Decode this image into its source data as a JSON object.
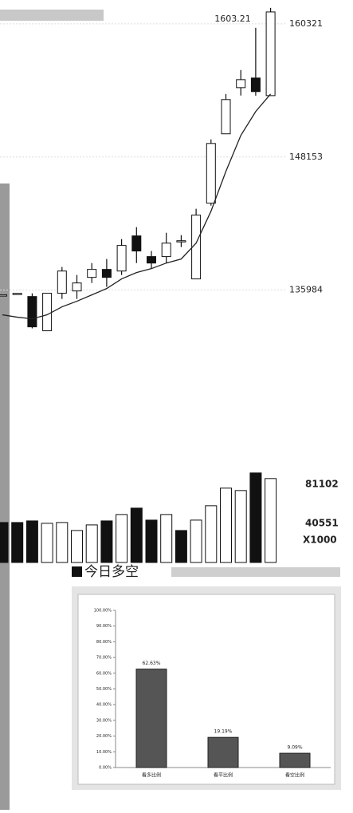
{
  "chart_data": [
    {
      "type": "candlestick",
      "annotation": "1603.21",
      "open": [
        135550,
        135690,
        135400,
        132270,
        135700,
        135910,
        137150,
        137880,
        137730,
        140940,
        139050,
        139050,
        140500,
        137010,
        143930,
        150270,
        154490,
        155370,
        153760
      ],
      "high": [
        135550,
        135690,
        135690,
        135690,
        138100,
        137370,
        138460,
        138830,
        140650,
        141740,
        139560,
        141230,
        141010,
        143420,
        149760,
        153910,
        156100,
        159960,
        161780
      ],
      "low": [
        135550,
        135690,
        132490,
        132270,
        135180,
        135180,
        136640,
        136280,
        137370,
        138460,
        137950,
        138460,
        139920,
        137010,
        143710,
        150270,
        153770,
        153760,
        153760
      ],
      "close": [
        135550,
        135690,
        132630,
        135700,
        137730,
        136640,
        137880,
        137150,
        140070,
        139560,
        138460,
        140280,
        140500,
        142840,
        149390,
        153400,
        155220,
        154130,
        161410
      ],
      "ma": [
        133730,
        133510,
        133360,
        133730,
        134460,
        134970,
        135550,
        136130,
        137010,
        137590,
        137950,
        138460,
        138830,
        140280,
        143200,
        146840,
        150120,
        152310,
        153910
      ],
      "ylim": [
        124000,
        162500
      ],
      "yticks": [
        160321,
        148153,
        135984
      ]
    },
    {
      "type": "bar",
      "unit": "X1000",
      "values": [
        41380,
        41380,
        43035,
        40552,
        41380,
        33104,
        38897,
        43035,
        49656,
        56277,
        43863,
        49656,
        33104,
        43863,
        58760,
        76967,
        74484,
        92691,
        86898
      ],
      "colors": [
        "#111",
        "#111",
        "#111",
        "#fff",
        "#fff",
        "#fff",
        "#fff",
        "#111",
        "#fff",
        "#111",
        "#111",
        "#fff",
        "#111",
        "#fff",
        "#fff",
        "#fff",
        "#fff",
        "#111",
        "#fff"
      ],
      "ylim": [
        0,
        95000
      ],
      "yticks": [
        81102,
        40551
      ]
    },
    {
      "type": "bar",
      "title": "今日多空",
      "color": "#555",
      "categories": [
        "看多比例",
        "看平比例",
        "看空比例"
      ],
      "values": [
        62.63,
        19.19,
        9.09
      ],
      "value_labels": [
        "62.63%",
        "19.19%",
        "9.09%"
      ],
      "ylim": [
        0,
        100
      ],
      "yticks": [
        {
          "value": 0,
          "label": "0.00%"
        },
        {
          "value": 10,
          "label": "10.00%"
        },
        {
          "value": 20,
          "label": "20.00%"
        },
        {
          "value": 30,
          "label": "30.00%"
        },
        {
          "value": 40,
          "label": "40.00%"
        },
        {
          "value": 50,
          "label": "50.00%"
        },
        {
          "value": 60,
          "label": "60.00%"
        },
        {
          "value": 70,
          "label": "70.00%"
        },
        {
          "value": 80,
          "label": "80.00%"
        },
        {
          "value": 90,
          "label": "90.00%"
        },
        {
          "value": 100,
          "label": "100.00%"
        }
      ]
    }
  ]
}
